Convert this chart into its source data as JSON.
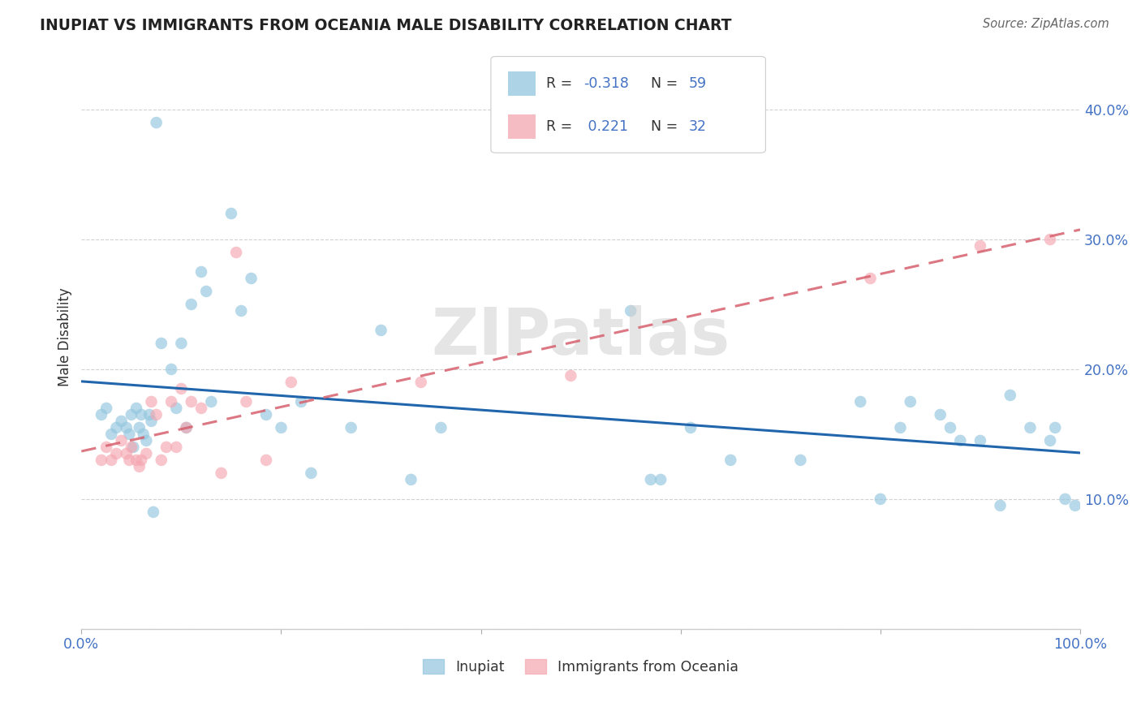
{
  "title": "INUPIAT VS IMMIGRANTS FROM OCEANIA MALE DISABILITY CORRELATION CHART",
  "source": "Source: ZipAtlas.com",
  "ylabel": "Male Disability",
  "xlim": [
    0.0,
    1.0
  ],
  "ylim": [
    0.0,
    0.45
  ],
  "x_ticks": [
    0.0,
    0.2,
    0.4,
    0.6,
    0.8,
    1.0
  ],
  "x_tick_labels": [
    "0.0%",
    "",
    "",
    "",
    "",
    "100.0%"
  ],
  "y_ticks": [
    0.0,
    0.1,
    0.2,
    0.3,
    0.4
  ],
  "y_tick_labels": [
    "",
    "10.0%",
    "20.0%",
    "30.0%",
    "40.0%"
  ],
  "legend_labels": [
    "Inupiat",
    "Immigrants from Oceania"
  ],
  "inupiat_R": -0.318,
  "inupiat_N": 59,
  "oceania_R": 0.221,
  "oceania_N": 32,
  "blue_color": "#92c5de",
  "pink_color": "#f4a6b0",
  "blue_line_color": "#2166ac",
  "pink_line_color": "#d6606d",
  "watermark_text": "ZIPatlas",
  "inupiat_x": [
    0.02,
    0.025,
    0.03,
    0.035,
    0.04,
    0.045,
    0.048,
    0.05,
    0.052,
    0.055,
    0.058,
    0.06,
    0.062,
    0.065,
    0.068,
    0.07,
    0.072,
    0.075,
    0.08,
    0.09,
    0.095,
    0.1,
    0.105,
    0.11,
    0.12,
    0.125,
    0.13,
    0.15,
    0.16,
    0.17,
    0.185,
    0.2,
    0.22,
    0.23,
    0.27,
    0.3,
    0.33,
    0.36,
    0.55,
    0.57,
    0.58,
    0.61,
    0.65,
    0.72,
    0.78,
    0.8,
    0.82,
    0.83,
    0.86,
    0.87,
    0.88,
    0.9,
    0.92,
    0.93,
    0.95,
    0.97,
    0.975,
    0.985,
    0.995
  ],
  "inupiat_y": [
    0.165,
    0.17,
    0.15,
    0.155,
    0.16,
    0.155,
    0.15,
    0.165,
    0.14,
    0.17,
    0.155,
    0.165,
    0.15,
    0.145,
    0.165,
    0.16,
    0.09,
    0.39,
    0.22,
    0.2,
    0.17,
    0.22,
    0.155,
    0.25,
    0.275,
    0.26,
    0.175,
    0.32,
    0.245,
    0.27,
    0.165,
    0.155,
    0.175,
    0.12,
    0.155,
    0.23,
    0.115,
    0.155,
    0.245,
    0.115,
    0.115,
    0.155,
    0.13,
    0.13,
    0.175,
    0.1,
    0.155,
    0.175,
    0.165,
    0.155,
    0.145,
    0.145,
    0.095,
    0.18,
    0.155,
    0.145,
    0.155,
    0.1,
    0.095
  ],
  "oceania_x": [
    0.02,
    0.025,
    0.03,
    0.035,
    0.04,
    0.045,
    0.048,
    0.05,
    0.055,
    0.058,
    0.06,
    0.065,
    0.07,
    0.075,
    0.08,
    0.085,
    0.09,
    0.095,
    0.1,
    0.105,
    0.11,
    0.12,
    0.14,
    0.155,
    0.165,
    0.185,
    0.21,
    0.34,
    0.49,
    0.79,
    0.9,
    0.97
  ],
  "oceania_y": [
    0.13,
    0.14,
    0.13,
    0.135,
    0.145,
    0.135,
    0.13,
    0.14,
    0.13,
    0.125,
    0.13,
    0.135,
    0.175,
    0.165,
    0.13,
    0.14,
    0.175,
    0.14,
    0.185,
    0.155,
    0.175,
    0.17,
    0.12,
    0.29,
    0.175,
    0.13,
    0.19,
    0.19,
    0.195,
    0.27,
    0.295,
    0.3
  ]
}
